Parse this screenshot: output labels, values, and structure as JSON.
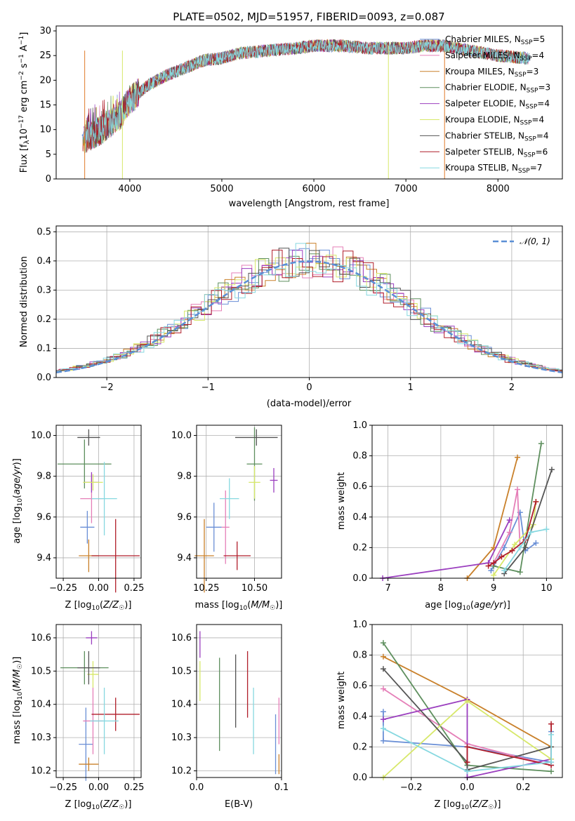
{
  "figure": {
    "title": "PLATE=0502, MJD=51957, FIBERID=0093, z=0.087"
  },
  "colors": {
    "Chabrier MILES": "#6a8fd6",
    "Salpeter MILES": "#e57fb8",
    "Kroupa MILES": "#c9802a",
    "Chabrier ELODIE": "#5e8f5e",
    "Salpeter ELODIE": "#9b3fbf",
    "Kroupa ELODIE": "#d7e86a",
    "Chabrier STELIB": "#555555",
    "Salpeter STELIB": "#b01e2a",
    "Kroupa STELIB": "#86d8e0",
    "normal": "#5b8fd6",
    "orange": "#e07b2a"
  },
  "chart_data": [
    {
      "id": "spectrum",
      "type": "line",
      "title": "PLATE=0502, MJD=51957, FIBERID=0093, z=0.087",
      "xlabel": "wavelength [Angstrom, rest frame]",
      "ylabel": "Flux [f_λ 10^-17 erg cm^-2 s^-1 A^-1]",
      "xlim": [
        3200,
        8700
      ],
      "ylim": [
        0,
        31
      ],
      "xticks": [
        4000,
        5000,
        6000,
        7000,
        8000
      ],
      "yticks": [
        0,
        5,
        10,
        15,
        20,
        25,
        30
      ],
      "grid": false,
      "legend_position": "right",
      "legend": [
        "Chabrier MILES, N_SSP=5",
        "Salpeter MILES, N_SSP=4",
        "Kroupa MILES, N_SSP=3",
        "Chabrier ELODIE, N_SSP=3",
        "Salpeter ELODIE, N_SSP=4",
        "Kroupa ELODIE, N_SSP=4",
        "Chabrier STELIB, N_SSP=4",
        "Salpeter STELIB, N_SSP=6",
        "Kroupa STELIB, N_SSP=7"
      ],
      "continuum_x": [
        3500,
        3700,
        3900,
        4000,
        4200,
        4400,
        4600,
        4800,
        5000,
        5200,
        5500,
        5800,
        6000,
        6300,
        6600,
        6800,
        7000,
        7200,
        7400,
        7700,
        8000,
        8300
      ],
      "continuum_y": [
        8,
        10,
        13,
        16,
        19,
        21,
        22.5,
        24,
        24.5,
        25.5,
        26,
        26.5,
        27,
        27,
        26.5,
        26.5,
        26.5,
        27,
        27,
        26,
        25,
        24.5
      ]
    },
    {
      "id": "residuals",
      "type": "histogram",
      "xlabel": "(data-model)/error",
      "ylabel": "Normed distribution",
      "xlim": [
        -2.5,
        2.5
      ],
      "ylim": [
        0,
        0.52
      ],
      "xticks": [
        -2,
        -1,
        0,
        1,
        2
      ],
      "yticks": [
        0.0,
        0.1,
        0.2,
        0.3,
        0.4,
        0.5
      ],
      "grid": true,
      "legend": [
        "𝒩(0, 1)"
      ],
      "legend_position": "top-right"
    },
    {
      "id": "age_vs_Z",
      "type": "errorbar",
      "xlabel": "Z [log10(Z/Z☉)]",
      "ylabel": "age [log10(age/yr)]",
      "xlim": [
        -0.3,
        0.3
      ],
      "ylim": [
        9.3,
        10.05
      ],
      "xticks": [
        -0.25,
        0.0,
        0.25
      ],
      "yticks": [
        9.4,
        9.6,
        9.8,
        10.0
      ],
      "grid": true,
      "points": [
        {
          "model": "Chabrier MILES",
          "x": -0.08,
          "xerr": 0.05,
          "y": 9.55,
          "yerr": 0.08
        },
        {
          "model": "Salpeter MILES",
          "x": -0.05,
          "xerr": 0.08,
          "y": 9.69,
          "yerr": 0.12
        },
        {
          "model": "Kroupa MILES",
          "x": -0.07,
          "xerr": 0.07,
          "y": 9.41,
          "yerr": 0.08
        },
        {
          "model": "Chabrier ELODIE",
          "x": -0.1,
          "xerr": 0.19,
          "y": 9.86,
          "yerr": 0.12
        },
        {
          "model": "Salpeter ELODIE",
          "x": -0.05,
          "xerr": 0.05,
          "y": 9.77,
          "yerr": 0.05
        },
        {
          "model": "Kroupa ELODIE",
          "x": -0.04,
          "xerr": 0.07,
          "y": 9.77,
          "yerr": 0.04
        },
        {
          "model": "Chabrier STELIB",
          "x": -0.07,
          "xerr": 0.08,
          "y": 9.99,
          "yerr": 0.04
        },
        {
          "model": "Salpeter STELIB",
          "x": 0.12,
          "xerr": 0.17,
          "y": 9.41,
          "yerr": 0.18
        },
        {
          "model": "Kroupa STELIB",
          "x": 0.04,
          "xerr": 0.09,
          "y": 9.69,
          "yerr": 0.18
        }
      ]
    },
    {
      "id": "age_vs_mass",
      "type": "errorbar",
      "xlabel": "mass [log10(M/M☉)]",
      "ylabel": "",
      "xlim": [
        10.2,
        10.64
      ],
      "ylim": [
        9.3,
        10.05
      ],
      "xticks": [
        10.25,
        10.5
      ],
      "yticks": [
        9.4,
        9.6,
        9.8,
        10.0
      ],
      "grid": true,
      "points": [
        {
          "model": "Chabrier MILES",
          "x": 10.29,
          "xerr": 0.04,
          "y": 9.55,
          "yerr": 0.12
        },
        {
          "model": "Salpeter MILES",
          "x": 10.35,
          "xerr": 0.02,
          "y": 9.55,
          "yerr": 0.18
        },
        {
          "model": "Kroupa MILES",
          "x": 10.24,
          "xerr": 0.05,
          "y": 9.41,
          "yerr": 0.18
        },
        {
          "model": "Chabrier ELODIE",
          "x": 10.5,
          "xerr": 0.04,
          "y": 9.86,
          "yerr": 0.18
        },
        {
          "model": "Salpeter ELODIE",
          "x": 10.6,
          "xerr": 0.02,
          "y": 9.78,
          "yerr": 0.06
        },
        {
          "model": "Kroupa ELODIE",
          "x": 10.5,
          "xerr": 0.03,
          "y": 9.77,
          "yerr": 0.08
        },
        {
          "model": "Chabrier STELIB",
          "x": 10.51,
          "xerr": 0.11,
          "y": 9.99,
          "yerr": 0.04
        },
        {
          "model": "Salpeter STELIB",
          "x": 10.41,
          "xerr": 0.07,
          "y": 9.41,
          "yerr": 0.07
        },
        {
          "model": "Kroupa STELIB",
          "x": 10.37,
          "xerr": 0.05,
          "y": 9.69,
          "yerr": 0.1
        }
      ]
    },
    {
      "id": "mass_vs_Z",
      "type": "errorbar",
      "xlabel": "Z [log10(Z/Z☉)]",
      "ylabel": "mass [log10(M/M☉)]",
      "xlim": [
        -0.3,
        0.3
      ],
      "ylim": [
        10.18,
        10.64
      ],
      "xticks": [
        -0.25,
        0.0,
        0.25
      ],
      "yticks": [
        10.2,
        10.3,
        10.4,
        10.5,
        10.6
      ],
      "grid": true,
      "points": [
        {
          "model": "Chabrier MILES",
          "x": -0.09,
          "xerr": 0.05,
          "y": 10.28,
          "yerr": 0.11
        },
        {
          "model": "Salpeter MILES",
          "x": -0.04,
          "xerr": 0.07,
          "y": 10.35,
          "yerr": 0.1
        },
        {
          "model": "Kroupa MILES",
          "x": -0.07,
          "xerr": 0.07,
          "y": 10.22,
          "yerr": 0.02
        },
        {
          "model": "Chabrier ELODIE",
          "x": -0.1,
          "xerr": 0.17,
          "y": 10.51,
          "yerr": 0.05
        },
        {
          "model": "Salpeter ELODIE",
          "x": -0.05,
          "xerr": 0.04,
          "y": 10.6,
          "yerr": 0.02
        },
        {
          "model": "Kroupa ELODIE",
          "x": -0.04,
          "xerr": 0.04,
          "y": 10.49,
          "yerr": 0.04
        },
        {
          "model": "Chabrier STELIB",
          "x": -0.07,
          "xerr": 0.08,
          "y": 10.51,
          "yerr": 0.05
        },
        {
          "model": "Salpeter STELIB",
          "x": 0.12,
          "xerr": 0.17,
          "y": 10.37,
          "yerr": 0.05
        },
        {
          "model": "Kroupa STELIB",
          "x": 0.04,
          "xerr": 0.1,
          "y": 10.35,
          "yerr": 0.1
        }
      ]
    },
    {
      "id": "mass_vs_ebv",
      "type": "errorbar",
      "xlabel": "E(B-V)",
      "ylabel": "",
      "xlim": [
        0.0,
        0.1
      ],
      "ylim": [
        10.18,
        10.64
      ],
      "xticks": [
        0.0,
        0.1
      ],
      "yticks": [
        10.2,
        10.3,
        10.4,
        10.5,
        10.6
      ],
      "grid": true,
      "points": [
        {
          "model": "Chabrier MILES",
          "x": 0.093,
          "xerr": 0.0,
          "y": 10.28,
          "yerr": 0.09
        },
        {
          "model": "Salpeter MILES",
          "x": 0.097,
          "xerr": 0.0,
          "y": 10.35,
          "yerr": 0.07
        },
        {
          "model": "Kroupa MILES",
          "x": 0.097,
          "xerr": 0.0,
          "y": 10.22,
          "yerr": 0.03
        },
        {
          "model": "Chabrier ELODIE",
          "x": 0.027,
          "xerr": 0.0,
          "y": 10.4,
          "yerr": 0.14
        },
        {
          "model": "Salpeter ELODIE",
          "x": 0.004,
          "xerr": 0.0,
          "y": 10.58,
          "yerr": 0.04
        },
        {
          "model": "Kroupa ELODIE",
          "x": 0.004,
          "xerr": 0.0,
          "y": 10.47,
          "yerr": 0.06
        },
        {
          "model": "Chabrier STELIB",
          "x": 0.046,
          "xerr": 0.0,
          "y": 10.44,
          "yerr": 0.11
        },
        {
          "model": "Salpeter STELIB",
          "x": 0.06,
          "xerr": 0.0,
          "y": 10.46,
          "yerr": 0.1
        },
        {
          "model": "Kroupa STELIB",
          "x": 0.067,
          "xerr": 0.0,
          "y": 10.35,
          "yerr": 0.1
        }
      ]
    },
    {
      "id": "weight_vs_age",
      "type": "line",
      "xlabel": "age [log10(age/yr)]",
      "ylabel": "mass weight",
      "xlim": [
        6.7,
        10.3
      ],
      "ylim": [
        0.0,
        1.0
      ],
      "xticks": [
        7,
        8,
        9,
        10
      ],
      "yticks": [
        0.0,
        0.2,
        0.4,
        0.6,
        0.8,
        1.0
      ],
      "grid": true,
      "series": [
        {
          "model": "Chabrier MILES",
          "x": [
            8.95,
            9.2,
            9.5,
            9.6,
            9.8
          ],
          "y": [
            0.05,
            0.2,
            0.43,
            0.18,
            0.23
          ]
        },
        {
          "model": "Salpeter MILES",
          "x": [
            9.0,
            9.3,
            9.45,
            9.5
          ],
          "y": [
            0.1,
            0.3,
            0.58,
            0.2
          ]
        },
        {
          "model": "Kroupa MILES",
          "x": [
            8.5,
            9.0,
            9.45
          ],
          "y": [
            0.0,
            0.2,
            0.79
          ]
        },
        {
          "model": "Chabrier ELODIE",
          "x": [
            9.0,
            9.5,
            9.9
          ],
          "y": [
            0.08,
            0.04,
            0.88
          ]
        },
        {
          "model": "Salpeter ELODIE",
          "x": [
            6.9,
            8.9,
            9.3
          ],
          "y": [
            0.0,
            0.1,
            0.38
          ]
        },
        {
          "model": "Kroupa ELODIE",
          "x": [
            9.0,
            9.4,
            9.75,
            9.8
          ],
          "y": [
            0.02,
            0.22,
            0.35,
            0.5
          ]
        },
        {
          "model": "Chabrier STELIB",
          "x": [
            9.2,
            9.6,
            10.1
          ],
          "y": [
            0.03,
            0.2,
            0.71
          ]
        },
        {
          "model": "Salpeter STELIB",
          "x": [
            8.9,
            9.0,
            9.15,
            9.35,
            9.6,
            9.8
          ],
          "y": [
            0.08,
            0.1,
            0.14,
            0.18,
            0.25,
            0.5
          ]
        },
        {
          "model": "Kroupa STELIB",
          "x": [
            9.2,
            9.5,
            9.7,
            10.0
          ],
          "y": [
            0.05,
            0.2,
            0.3,
            0.32
          ]
        }
      ]
    },
    {
      "id": "weight_vs_Z",
      "type": "line",
      "xlabel": "Z [log10(Z/Z☉)]",
      "ylabel": "mass weight",
      "xlim": [
        -0.34,
        0.34
      ],
      "ylim": [
        0.0,
        1.0
      ],
      "xticks": [
        -0.2,
        0.0,
        0.2
      ],
      "yticks": [
        0.0,
        0.2,
        0.4,
        0.6,
        0.8,
        1.0
      ],
      "grid": true,
      "series": [
        {
          "model": "Chabrier MILES",
          "x": [
            -0.3,
            -0.3,
            0.0,
            0.3,
            0.3
          ],
          "y": [
            0.43,
            0.24,
            0.2,
            0.1,
            0.3
          ]
        },
        {
          "model": "Salpeter MILES",
          "x": [
            -0.3,
            0.0,
            0.3
          ],
          "y": [
            0.58,
            0.22,
            0.08
          ]
        },
        {
          "model": "Kroupa MILES",
          "x": [
            -0.3,
            0.0,
            0.3
          ],
          "y": [
            0.79,
            0.51,
            0.2
          ]
        },
        {
          "model": "Chabrier ELODIE",
          "x": [
            -0.3,
            0.0,
            0.0,
            0.3
          ],
          "y": [
            0.88,
            0.08,
            0.08,
            0.04
          ]
        },
        {
          "model": "Salpeter ELODIE",
          "x": [
            -0.3,
            0.0,
            0.0,
            0.3
          ],
          "y": [
            0.38,
            0.51,
            0.0,
            0.12
          ]
        },
        {
          "model": "Kroupa ELODIE",
          "x": [
            -0.3,
            0.0,
            0.3
          ],
          "y": [
            0.0,
            0.5,
            0.12
          ]
        },
        {
          "model": "Chabrier STELIB",
          "x": [
            -0.3,
            0.0,
            0.0,
            0.3
          ],
          "y": [
            0.71,
            0.1,
            0.05,
            0.2
          ]
        },
        {
          "model": "Salpeter STELIB",
          "x": [
            0.0,
            0.0,
            0.3,
            0.3
          ],
          "y": [
            0.1,
            0.2,
            0.08,
            0.35
          ]
        },
        {
          "model": "Kroupa STELIB",
          "x": [
            -0.3,
            0.0,
            0.3,
            0.3
          ],
          "y": [
            0.32,
            0.04,
            0.1,
            0.28
          ]
        }
      ]
    }
  ]
}
